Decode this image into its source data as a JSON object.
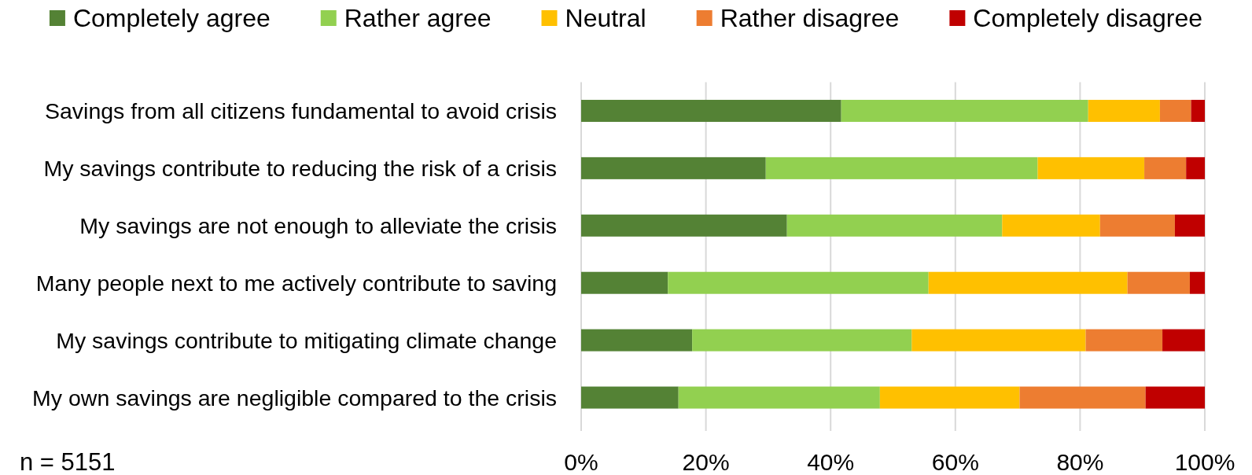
{
  "chart_data": {
    "type": "bar",
    "orientation": "horizontal",
    "stacked": true,
    "categories": [
      "Savings from all citizens fundamental to avoid crisis",
      "My savings contribute to reducing the risk of a crisis",
      "My savings are not enough to alleviate the crisis",
      "Many people next to me actively contribute to saving",
      "My savings contribute to mitigating climate change",
      "My own savings are negligible compared to the crisis"
    ],
    "series": [
      {
        "name": "Completely agree",
        "color": "#548235",
        "values": [
          41.7,
          29.6,
          33.0,
          13.9,
          17.8,
          15.6
        ]
      },
      {
        "name": "Rather agree",
        "color": "#92d050",
        "values": [
          39.6,
          43.6,
          34.5,
          41.8,
          35.2,
          32.3
        ]
      },
      {
        "name": "Neutral",
        "color": "#ffc000",
        "values": [
          11.5,
          17.1,
          15.7,
          31.9,
          27.9,
          22.4
        ]
      },
      {
        "name": "Rather disagree",
        "color": "#ed7d31",
        "values": [
          5.0,
          6.7,
          12.0,
          10.0,
          12.3,
          20.2
        ]
      },
      {
        "name": "Completely disagree",
        "color": "#c00000",
        "values": [
          2.2,
          3.0,
          4.8,
          2.4,
          6.8,
          9.5
        ]
      }
    ],
    "xlim": [
      0,
      100
    ],
    "xticks": [
      {
        "value": 0,
        "label": "0%"
      },
      {
        "value": 20,
        "label": "20%"
      },
      {
        "value": 40,
        "label": "40%"
      },
      {
        "value": 60,
        "label": "60%"
      },
      {
        "value": 80,
        "label": "80%"
      },
      {
        "value": 100,
        "label": "100%"
      }
    ],
    "grid": "x",
    "legend": "top",
    "annotations": [
      "n = 5151"
    ]
  }
}
